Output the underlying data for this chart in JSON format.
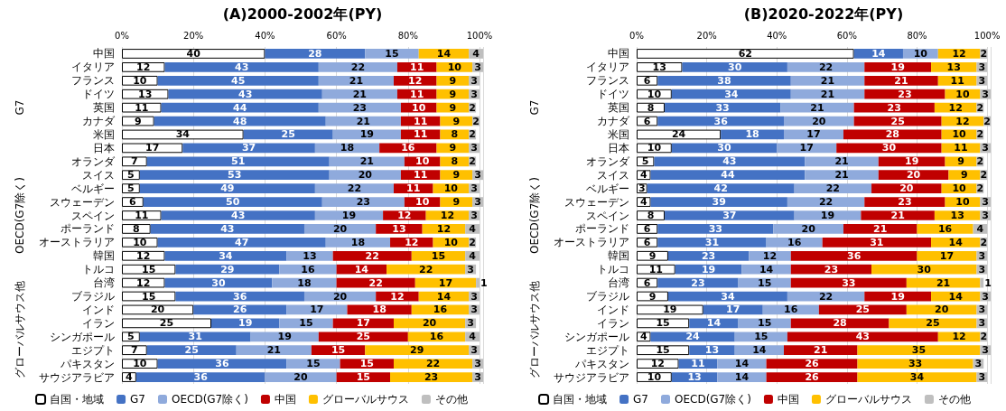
{
  "chart_data": [
    {
      "type": "bar",
      "title": "(A)2000-2002年(PY)",
      "orientation": "horizontal",
      "stacked": true,
      "data_labels": true,
      "grid": "x",
      "legend": "bottom",
      "categories": [
        "中国",
        "イタリア",
        "フランス",
        "ドイツ",
        "英国",
        "カナダ",
        "米国",
        "日本",
        "オランダ",
        "スイス",
        "ベルギー",
        "スウェーデン",
        "スペイン",
        "ポーランド",
        "オーストラリア",
        "韓国",
        "トルコ",
        "台湾",
        "ブラジル",
        "インド",
        "イラン",
        "シンガポール",
        "エジプト",
        "パキスタン",
        "サウジアラビア"
      ],
      "xlim": [
        0,
        101
      ],
      "xticks": [
        {
          "value": 0,
          "label": "0%"
        },
        {
          "value": 20,
          "label": "20%"
        },
        {
          "value": 40,
          "label": "40%"
        },
        {
          "value": 60,
          "label": "60%"
        },
        {
          "value": 80,
          "label": "80%"
        },
        {
          "value": 100,
          "label": "100%"
        }
      ],
      "annotations": [
        "G7",
        "OECD(G7除く)",
        "グローバルサウス他"
      ],
      "series": [
        {
          "name": "自国・地域",
          "color": "#ffffff",
          "values": [
            40,
            12,
            10,
            13,
            11,
            9,
            34,
            17,
            7,
            5,
            5,
            6,
            11,
            8,
            10,
            12,
            15,
            12,
            15,
            20,
            25,
            5,
            7,
            10,
            4
          ]
        },
        {
          "name": "G7",
          "color": "#4472c4",
          "values": [
            28,
            43,
            45,
            43,
            44,
            48,
            25,
            37,
            51,
            53,
            49,
            50,
            43,
            43,
            47,
            34,
            29,
            30,
            36,
            26,
            19,
            31,
            25,
            36,
            36
          ]
        },
        {
          "name": "OECD(G7除く)",
          "color": "#8faadc",
          "values": [
            15,
            22,
            21,
            21,
            23,
            21,
            19,
            18,
            21,
            20,
            22,
            23,
            19,
            20,
            18,
            13,
            16,
            18,
            20,
            17,
            15,
            19,
            21,
            15,
            20
          ]
        },
        {
          "name": "中国",
          "color": "#c00000",
          "values": [
            null,
            11,
            12,
            11,
            10,
            11,
            11,
            16,
            10,
            11,
            11,
            10,
            12,
            13,
            12,
            22,
            14,
            22,
            12,
            18,
            17,
            25,
            15,
            15,
            15
          ]
        },
        {
          "name": "グローバルサウス",
          "color": "#ffc000",
          "values": [
            14,
            10,
            9,
            9,
            9,
            9,
            8,
            9,
            8,
            9,
            10,
            9,
            12,
            12,
            10,
            15,
            22,
            17,
            14,
            16,
            20,
            16,
            29,
            22,
            23
          ]
        },
        {
          "name": "その他",
          "color": "#bfbfbf",
          "values": [
            4,
            3,
            3,
            3,
            2,
            2,
            2,
            3,
            2,
            3,
            3,
            3,
            3,
            4,
            2,
            4,
            3,
            1,
            3,
            3,
            3,
            4,
            3,
            3,
            3
          ]
        }
      ]
    },
    {
      "type": "bar",
      "title": "(B)2020-2022年(PY)",
      "orientation": "horizontal",
      "stacked": true,
      "data_labels": true,
      "grid": "x",
      "legend": "bottom",
      "categories": [
        "中国",
        "イタリア",
        "フランス",
        "ドイツ",
        "英国",
        "カナダ",
        "米国",
        "日本",
        "オランダ",
        "スイス",
        "ベルギー",
        "スウェーデン",
        "スペイン",
        "ポーランド",
        "オーストラリア",
        "韓国",
        "トルコ",
        "台湾",
        "ブラジル",
        "インド",
        "イラン",
        "シンガポール",
        "エジプト",
        "パキスタン",
        "サウジアラビア"
      ],
      "xlim": [
        0,
        101
      ],
      "xticks": [
        {
          "value": 0,
          "label": "0%"
        },
        {
          "value": 20,
          "label": "20%"
        },
        {
          "value": 40,
          "label": "40%"
        },
        {
          "value": 60,
          "label": "60%"
        },
        {
          "value": 80,
          "label": "80%"
        },
        {
          "value": 100,
          "label": "100%"
        }
      ],
      "annotations": [
        "G7",
        "OECD(G7除く)",
        "グローバルサウス他"
      ],
      "series": [
        {
          "name": "自国・地域",
          "color": "#ffffff",
          "values": [
            62,
            13,
            6,
            10,
            8,
            6,
            24,
            10,
            5,
            4,
            3,
            4,
            8,
            6,
            6,
            9,
            11,
            6,
            9,
            19,
            15,
            4,
            15,
            12,
            10
          ]
        },
        {
          "name": "G7",
          "color": "#4472c4",
          "values": [
            14,
            30,
            38,
            34,
            33,
            36,
            18,
            30,
            43,
            44,
            42,
            39,
            37,
            33,
            31,
            23,
            19,
            23,
            34,
            17,
            14,
            24,
            13,
            11,
            13
          ]
        },
        {
          "name": "OECD(G7除く)",
          "color": "#8faadc",
          "values": [
            10,
            22,
            21,
            21,
            21,
            20,
            17,
            17,
            21,
            21,
            22,
            22,
            19,
            20,
            16,
            12,
            14,
            15,
            22,
            16,
            15,
            15,
            14,
            14,
            14
          ]
        },
        {
          "name": "中国",
          "color": "#c00000",
          "values": [
            null,
            19,
            21,
            23,
            23,
            25,
            28,
            30,
            19,
            20,
            20,
            23,
            21,
            21,
            31,
            36,
            23,
            33,
            19,
            25,
            28,
            43,
            21,
            26,
            26
          ]
        },
        {
          "name": "グローバルサウス",
          "color": "#ffc000",
          "values": [
            12,
            13,
            11,
            10,
            12,
            12,
            10,
            11,
            9,
            9,
            10,
            10,
            13,
            16,
            14,
            17,
            30,
            21,
            14,
            20,
            25,
            12,
            35,
            33,
            34
          ]
        },
        {
          "name": "その他",
          "color": "#bfbfbf",
          "values": [
            2,
            3,
            3,
            3,
            2,
            2,
            2,
            3,
            2,
            2,
            2,
            3,
            3,
            4,
            2,
            3,
            3,
            1,
            3,
            3,
            3,
            2,
            3,
            3,
            3
          ]
        }
      ]
    }
  ]
}
